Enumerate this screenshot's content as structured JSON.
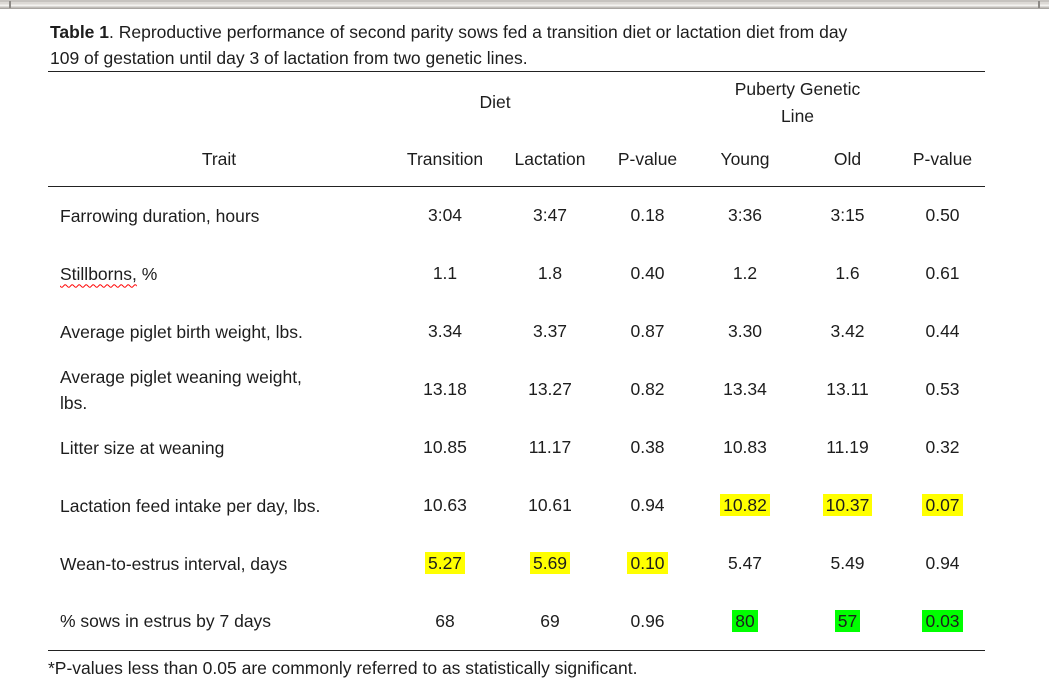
{
  "colors": {
    "highlight_yellow": "#ffff00",
    "highlight_green": "#00ff00",
    "squiggle_red": "#ff0000"
  },
  "title": {
    "bold": "Table 1",
    "rest_line1": ". Reproductive performance of second parity sows fed a transition diet or lactation diet from day",
    "line2": "109 of gestation until day 3 of lactation from two genetic lines."
  },
  "table": {
    "spanners": {
      "diet": "Diet",
      "genetic_line": "Puberty Genetic Line"
    },
    "columns": [
      "Trait",
      "Transition",
      "Lactation",
      "P-value",
      "Young",
      "Old",
      "P-value"
    ],
    "rows": [
      {
        "trait": "Farrowing duration, hours",
        "values": [
          "3:04",
          "3:47",
          "0.18",
          "3:36",
          "3:15",
          "0.50"
        ],
        "highlights": [
          null,
          null,
          null,
          null,
          null,
          null
        ]
      },
      {
        "trait_misspelled": "Stillborns,",
        "trait_rest": " %",
        "values": [
          "1.1",
          "1.8",
          "0.40",
          "1.2",
          "1.6",
          "0.61"
        ],
        "highlights": [
          null,
          null,
          null,
          null,
          null,
          null
        ]
      },
      {
        "trait": "Average piglet birth weight, lbs.",
        "values": [
          "3.34",
          "3.37",
          "0.87",
          "3.30",
          "3.42",
          "0.44"
        ],
        "highlights": [
          null,
          null,
          null,
          null,
          null,
          null
        ]
      },
      {
        "trait": "Average piglet weaning weight, lbs.",
        "values": [
          "13.18",
          "13.27",
          "0.82",
          "13.34",
          "13.11",
          "0.53"
        ],
        "highlights": [
          null,
          null,
          null,
          null,
          null,
          null
        ]
      },
      {
        "trait": "Litter size at weaning",
        "values": [
          "10.85",
          "11.17",
          "0.38",
          "10.83",
          "11.19",
          "0.32"
        ],
        "highlights": [
          null,
          null,
          null,
          null,
          null,
          null
        ]
      },
      {
        "trait": "Lactation feed intake per day, lbs.",
        "values": [
          "10.63",
          "10.61",
          "0.94",
          "10.82",
          "10.37",
          "0.07"
        ],
        "highlights": [
          null,
          null,
          null,
          "yellow",
          "yellow",
          "yellow"
        ]
      },
      {
        "trait": "Wean-to-estrus interval, days",
        "values": [
          "5.27",
          "5.69",
          "0.10",
          "5.47",
          "5.49",
          "0.94"
        ],
        "highlights": [
          "yellow",
          "yellow",
          "yellow",
          null,
          null,
          null
        ]
      },
      {
        "trait": "% sows in estrus by 7 days",
        "values": [
          "68",
          "69",
          "0.96",
          "80",
          "57",
          "0.03"
        ],
        "highlights": [
          null,
          null,
          null,
          "green",
          "green",
          "green"
        ]
      }
    ]
  },
  "footnote": "*P-values less than 0.05 are commonly referred to as statistically significant."
}
